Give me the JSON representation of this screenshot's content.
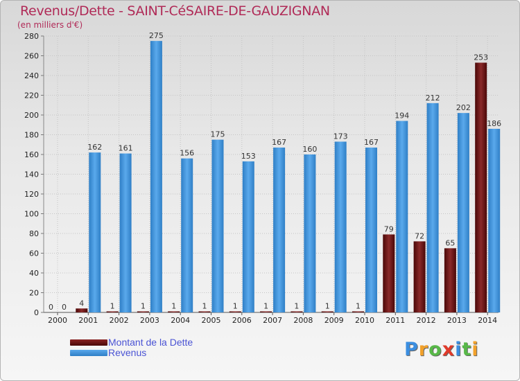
{
  "header": {
    "title": "Revenus/Dette - SAINT-CéSAIRE-DE-GAUZIGNAN",
    "subtitle": "(en milliers d'€)"
  },
  "legend": {
    "items": [
      {
        "label": "Montant de la Dette",
        "color": "#6b0d0d"
      },
      {
        "label": "Revenus",
        "color": "#3d93dc"
      }
    ]
  },
  "logo": {
    "letters": [
      "P",
      "r",
      "o",
      "x",
      "i",
      "t",
      "i"
    ],
    "colors": [
      "#3b8ee0",
      "#f2a12a",
      "#58b848",
      "#e03a2a",
      "#3b8ee0",
      "#58b848",
      "#f2a12a"
    ]
  },
  "chart_data": {
    "type": "bar",
    "title": "Revenus/Dette - SAINT-CéSAIRE-DE-GAUZIGNAN",
    "ylabel": "(en milliers d'€)",
    "xlabel": "",
    "ylim": [
      0,
      280
    ],
    "yticks": [
      0,
      20,
      40,
      60,
      80,
      100,
      120,
      140,
      160,
      180,
      200,
      220,
      240,
      260,
      280
    ],
    "grid": true,
    "legend_position": "bottom-left",
    "categories": [
      "2000",
      "2001",
      "2002",
      "2003",
      "2004",
      "2005",
      "2006",
      "2007",
      "2008",
      "2009",
      "2010",
      "2011",
      "2012",
      "2013",
      "2014"
    ],
    "series": [
      {
        "name": "Montant de la Dette",
        "color": "#6b0d0d",
        "values": [
          0,
          4,
          1,
          1,
          1,
          1,
          1,
          1,
          1,
          1,
          1,
          79,
          72,
          65,
          253
        ]
      },
      {
        "name": "Revenus",
        "color": "#3d93dc",
        "values": [
          0,
          162,
          161,
          275,
          156,
          175,
          153,
          167,
          160,
          173,
          167,
          194,
          212,
          202,
          186
        ]
      }
    ]
  }
}
